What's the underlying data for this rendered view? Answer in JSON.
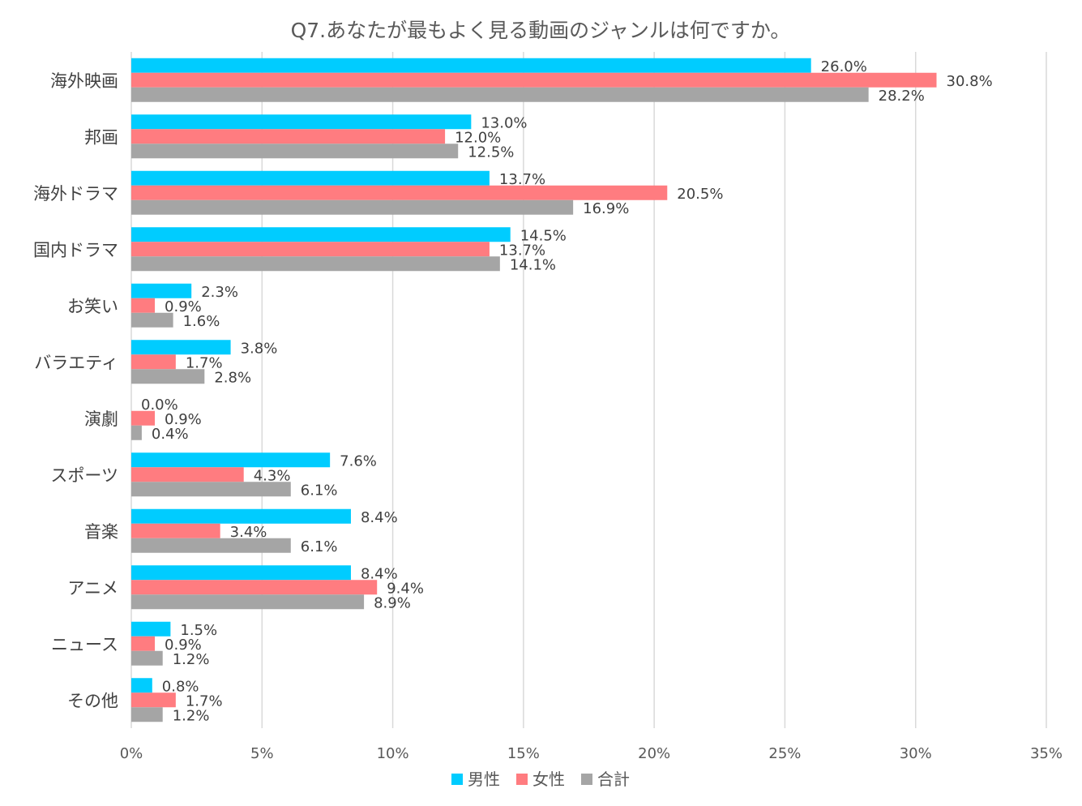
{
  "chart_data": {
    "type": "bar",
    "orientation": "horizontal",
    "title": "Q7.あなたが最もよく見る動画のジャンルは何ですか。",
    "categories": [
      "海外映画",
      "邦画",
      "海外ドラマ",
      "国内ドラマ",
      "お笑い",
      "バラエティ",
      "演劇",
      "スポーツ",
      "音楽",
      "アニメ",
      "ニュース",
      "その他"
    ],
    "series": [
      {
        "name": "男性",
        "color": "#00ccff",
        "values": [
          26.0,
          13.0,
          13.7,
          14.5,
          2.3,
          3.8,
          0.0,
          7.6,
          8.4,
          8.4,
          1.5,
          0.8
        ],
        "labels": [
          "26.0%",
          "13.0%",
          "13.7%",
          "14.5%",
          "2.3%",
          "3.8%",
          "0.0%",
          "7.6%",
          "8.4%",
          "8.4%",
          "1.5%",
          "0.8%"
        ]
      },
      {
        "name": "女性",
        "color": "#ff7c80",
        "values": [
          30.8,
          12.0,
          20.5,
          13.7,
          0.9,
          1.7,
          0.9,
          4.3,
          3.4,
          9.4,
          0.9,
          1.7
        ],
        "labels": [
          "30.8%",
          "12.0%",
          "20.5%",
          "13.7%",
          "0.9%",
          "1.7%",
          "0.9%",
          "4.3%",
          "3.4%",
          "9.4%",
          "0.9%",
          "1.7%"
        ]
      },
      {
        "name": "合計",
        "color": "#a5a5a5",
        "values": [
          28.2,
          12.5,
          16.9,
          14.1,
          1.6,
          2.8,
          0.4,
          6.1,
          6.1,
          8.9,
          1.2,
          1.2
        ],
        "labels": [
          "28.2%",
          "12.5%",
          "16.9%",
          "14.1%",
          "1.6%",
          "2.8%",
          "0.4%",
          "6.1%",
          "6.1%",
          "8.9%",
          "1.2%",
          "1.2%"
        ]
      }
    ],
    "xlim": [
      0,
      35
    ],
    "xticks": [
      0,
      5,
      10,
      15,
      20,
      25,
      30,
      35
    ],
    "xtick_labels": [
      "0%",
      "5%",
      "10%",
      "15%",
      "20%",
      "25%",
      "30%",
      "35%"
    ],
    "grid": "vertical",
    "legend": "bottom-center"
  }
}
